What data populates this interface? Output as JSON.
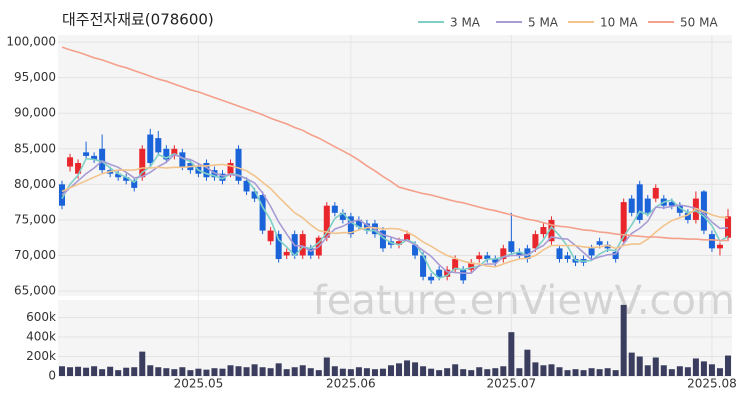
{
  "chart_data": {
    "type": "candlestick",
    "title": "대주전자재료(078600)",
    "watermark": "feature.enViewV.com",
    "grid": true,
    "up_color": "#e8262b",
    "down_color": "#1a63d8",
    "categories": [
      null,
      null,
      null,
      null,
      null,
      null,
      null,
      null,
      null,
      null,
      null,
      null,
      null,
      null,
      null,
      null,
      null,
      "2025.05",
      null,
      null,
      null,
      null,
      null,
      null,
      null,
      null,
      null,
      null,
      null,
      null,
      null,
      null,
      null,
      null,
      null,
      null,
      "2025.06",
      null,
      null,
      null,
      null,
      null,
      null,
      null,
      null,
      null,
      null,
      null,
      null,
      null,
      null,
      null,
      null,
      null,
      null,
      null,
      "2025.07",
      null,
      null,
      null,
      null,
      null,
      null,
      null,
      null,
      null,
      null,
      null,
      null,
      null,
      null,
      null,
      null,
      null,
      null,
      null,
      null,
      null,
      null,
      null,
      null,
      "2025.08",
      null,
      null
    ],
    "open": [
      80000,
      82500,
      81500,
      84500,
      84000,
      85000,
      82000,
      81500,
      81000,
      80500,
      81000,
      87000,
      86500,
      85000,
      84000,
      84500,
      83000,
      82500,
      83000,
      82000,
      81500,
      81500,
      85000,
      80500,
      79000,
      78500,
      72000,
      73000,
      70000,
      73000,
      70000,
      71000,
      70000,
      72500,
      77000,
      76000,
      75500,
      75000,
      74500,
      74500,
      73500,
      72000,
      71500,
      72000,
      71500,
      70000,
      67000,
      68000,
      67000,
      68000,
      68000,
      68000,
      69500,
      70000,
      69500,
      69500,
      72000,
      70500,
      71000,
      71000,
      73000,
      72000,
      71000,
      70000,
      69500,
      69500,
      71000,
      72000,
      71500,
      70500,
      72000,
      78000,
      80000,
      78000,
      78000,
      78000,
      77500,
      77000,
      76000,
      75000,
      79000,
      73000,
      71000,
      72500
    ],
    "high": [
      80500,
      84300,
      83500,
      86000,
      84500,
      87000,
      82500,
      82000,
      81500,
      81000,
      85500,
      87800,
      87500,
      85500,
      85500,
      85000,
      83500,
      83000,
      83500,
      82500,
      82000,
      83500,
      85500,
      81000,
      79500,
      79000,
      74000,
      73500,
      71000,
      73500,
      73500,
      71500,
      72800,
      77500,
      77500,
      76500,
      76000,
      75500,
      75000,
      75000,
      74000,
      72500,
      72500,
      73500,
      72000,
      70500,
      67500,
      68500,
      68500,
      70000,
      68500,
      69500,
      70500,
      70500,
      70000,
      71500,
      76000,
      71000,
      71500,
      73500,
      74500,
      75500,
      71500,
      70500,
      70000,
      70000,
      71500,
      72500,
      72000,
      71000,
      78000,
      78500,
      80500,
      78500,
      80000,
      78500,
      78000,
      77500,
      76500,
      79000,
      79200,
      73500,
      71800,
      76500
    ],
    "low": [
      76500,
      81800,
      80800,
      83500,
      83000,
      81500,
      81000,
      80500,
      80000,
      79000,
      80500,
      82500,
      84000,
      83000,
      83500,
      82000,
      81500,
      81000,
      80500,
      80500,
      80000,
      81000,
      80000,
      78500,
      77500,
      73000,
      71500,
      69000,
      69500,
      69500,
      69500,
      69500,
      69500,
      72000,
      75500,
      74500,
      72500,
      73500,
      73000,
      72500,
      70500,
      71000,
      71000,
      72000,
      69500,
      66500,
      66000,
      66500,
      66500,
      67500,
      66000,
      67500,
      69000,
      69000,
      68500,
      69000,
      70000,
      69500,
      69000,
      70500,
      72500,
      71500,
      69000,
      69000,
      68500,
      68500,
      69500,
      71000,
      70500,
      69000,
      71500,
      75500,
      74500,
      75500,
      77500,
      76500,
      76500,
      75500,
      74500,
      74500,
      73000,
      70500,
      70000,
      72000
    ],
    "close": [
      77000,
      83800,
      83000,
      84000,
      83500,
      82000,
      81500,
      81000,
      80500,
      79500,
      85000,
      83000,
      84500,
      83500,
      85000,
      82500,
      82000,
      81500,
      81000,
      81000,
      80500,
      83000,
      80500,
      79000,
      78000,
      73500,
      73500,
      69500,
      70500,
      70000,
      73000,
      70000,
      72500,
      77000,
      76000,
      75000,
      73000,
      74000,
      73500,
      73000,
      71000,
      71500,
      72000,
      73000,
      70000,
      67000,
      66500,
      67000,
      68000,
      69500,
      66500,
      69000,
      70000,
      69500,
      69000,
      71000,
      70500,
      70000,
      69500,
      73000,
      74000,
      75000,
      69500,
      69500,
      69000,
      69000,
      70000,
      71500,
      71000,
      69500,
      77500,
      76000,
      75000,
      76000,
      79500,
      77000,
      77000,
      76000,
      75000,
      78000,
      73500,
      71000,
      71500,
      75500
    ],
    "ma_series": [
      {
        "name": "3 MA",
        "color": "#7fcfc6",
        "values": [
          78000,
          80000,
          81300,
          83600,
          83500,
          83200,
          82300,
          81500,
          81000,
          80300,
          81700,
          82500,
          84200,
          83700,
          84300,
          83700,
          83200,
          82000,
          81500,
          81200,
          80800,
          81500,
          81300,
          80800,
          79200,
          76800,
          75000,
          72200,
          71200,
          70000,
          71200,
          71000,
          71800,
          73200,
          75200,
          76000,
          74700,
          74000,
          73500,
          73500,
          72500,
          71800,
          71500,
          72200,
          71700,
          70000,
          67800,
          66800,
          67200,
          68200,
          68000,
          68300,
          68500,
          69500,
          69500,
          69800,
          70200,
          70500,
          70000,
          70800,
          72200,
          74000,
          72800,
          71300,
          69300,
          69200,
          69300,
          70200,
          70800,
          70700,
          72700,
          74300,
          76200,
          75700,
          76800,
          77500,
          77800,
          76700,
          76000,
          76300,
          75500,
          74200,
          72000,
          72700
        ]
      },
      {
        "name": "5 MA",
        "color": "#a99bd4",
        "values": [
          78500,
          79500,
          80500,
          81500,
          82300,
          83300,
          82800,
          82400,
          81700,
          80900,
          81100,
          81700,
          82500,
          83100,
          84200,
          83700,
          83500,
          82900,
          82400,
          81600,
          81200,
          81400,
          81200,
          80800,
          80200,
          78800,
          76900,
          74700,
          73000,
          71400,
          71300,
          70600,
          71200,
          72600,
          73700,
          74100,
          74700,
          75000,
          74300,
          73700,
          72900,
          72600,
          72200,
          72100,
          71500,
          70700,
          69900,
          68700,
          67700,
          67600,
          67500,
          67500,
          68600,
          68800,
          68800,
          69800,
          70000,
          70000,
          70100,
          70800,
          71400,
          72600,
          72400,
          72300,
          71400,
          70400,
          69400,
          69800,
          70100,
          70200,
          71700,
          73100,
          73800,
          74800,
          76800,
          76700,
          76900,
          77100,
          76900,
          76600,
          75900,
          74700,
          73800,
          73900
        ]
      },
      {
        "name": "10 MA",
        "color": "#f2c38c",
        "values": [
          79000,
          79500,
          80000,
          80500,
          81000,
          81500,
          81800,
          82000,
          82000,
          82000,
          82300,
          82300,
          82400,
          82300,
          82400,
          82400,
          82500,
          82600,
          82600,
          82700,
          82800,
          82600,
          82300,
          81900,
          81200,
          80300,
          79400,
          78200,
          77100,
          76000,
          75300,
          74300,
          73500,
          73300,
          73100,
          73200,
          73200,
          73600,
          73900,
          73900,
          73700,
          73800,
          73700,
          73300,
          72700,
          71900,
          71300,
          70600,
          70000,
          69600,
          69200,
          68900,
          68800,
          68500,
          68400,
          68800,
          69200,
          69500,
          69600,
          70000,
          70800,
          71400,
          71400,
          71400,
          71400,
          71200,
          71100,
          71200,
          71400,
          71000,
          71400,
          71600,
          71600,
          72300,
          73300,
          74200,
          74900,
          75300,
          75700,
          76600,
          76200,
          75700,
          75400,
          75300
        ]
      },
      {
        "name": "50 MA",
        "color": "#f4a08a",
        "values": [
          99300,
          98900,
          98600,
          98200,
          97800,
          97500,
          97100,
          96700,
          96400,
          96000,
          95600,
          95200,
          94800,
          94500,
          94100,
          93700,
          93300,
          93000,
          92600,
          92200,
          91800,
          91400,
          91000,
          90600,
          90200,
          89800,
          89300,
          88900,
          88500,
          88000,
          87600,
          87000,
          86500,
          85900,
          85300,
          84700,
          84100,
          83400,
          82600,
          81900,
          81100,
          80400,
          79600,
          79300,
          79000,
          78700,
          78500,
          78200,
          77900,
          77600,
          77400,
          77100,
          76800,
          76500,
          76300,
          76000,
          75700,
          75400,
          75100,
          74900,
          74600,
          74300,
          74100,
          74000,
          73800,
          73600,
          73500,
          73300,
          73200,
          73000,
          72900,
          72800,
          72700,
          72600,
          72600,
          72500,
          72400,
          72400,
          72300,
          72300,
          72200,
          72200,
          72100,
          72100
        ]
      }
    ],
    "ylim": [
      64300,
      101000
    ],
    "yticks": [
      {
        "value": 65000,
        "label": "65,000"
      },
      {
        "value": 70000,
        "label": "70,000"
      },
      {
        "value": 75000,
        "label": "75,000"
      },
      {
        "value": 80000,
        "label": "80,000"
      },
      {
        "value": 85000,
        "label": "85,000"
      },
      {
        "value": 90000,
        "label": "90,000"
      },
      {
        "value": 95000,
        "label": "95,000"
      },
      {
        "value": 100000,
        "label": "100,000"
      }
    ],
    "volume": {
      "type": "bar",
      "color": "#3b3d5e",
      "values": [
        100000,
        90000,
        95000,
        85000,
        100000,
        70000,
        95000,
        60000,
        85000,
        90000,
        250000,
        110000,
        90000,
        80000,
        70000,
        90000,
        60000,
        75000,
        65000,
        80000,
        75000,
        110000,
        100000,
        90000,
        120000,
        90000,
        80000,
        130000,
        70000,
        90000,
        110000,
        80000,
        60000,
        190000,
        100000,
        75000,
        70000,
        90000,
        80000,
        70000,
        75000,
        110000,
        130000,
        160000,
        140000,
        100000,
        75000,
        60000,
        80000,
        120000,
        70000,
        60000,
        90000,
        70000,
        80000,
        100000,
        450000,
        80000,
        270000,
        140000,
        110000,
        120000,
        90000,
        60000,
        70000,
        60000,
        80000,
        70000,
        80000,
        60000,
        730000,
        240000,
        200000,
        110000,
        190000,
        110000,
        70000,
        100000,
        90000,
        180000,
        150000,
        120000,
        80000,
        210000
      ],
      "ylim": [
        0,
        780000
      ],
      "yticks": [
        0,
        {
          "value": 200000,
          "label": "200k"
        },
        {
          "value": 400000,
          "label": "400k"
        },
        {
          "value": 600000,
          "label": "600k"
        }
      ]
    }
  }
}
